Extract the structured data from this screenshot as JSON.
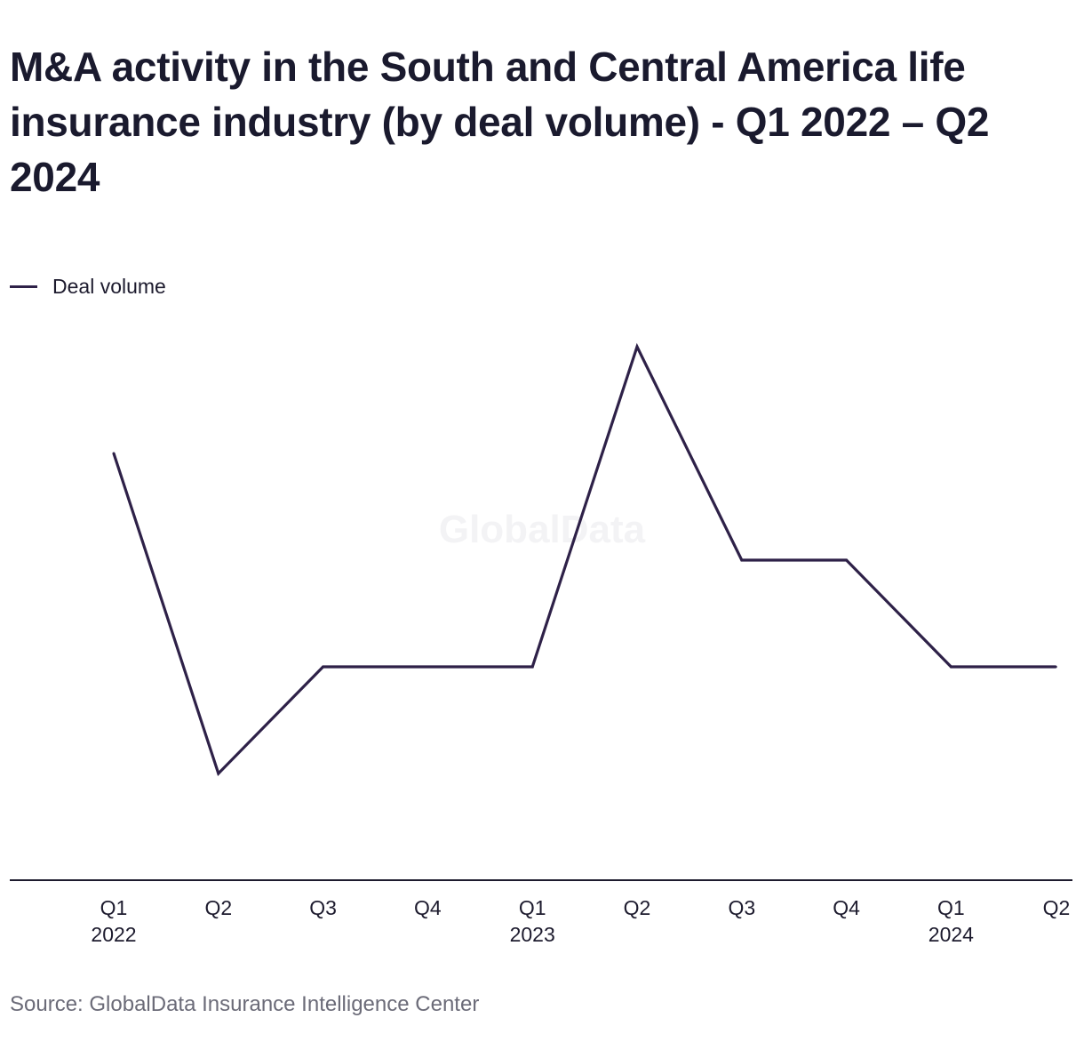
{
  "source_text": "Source: GlobalData Insurance Intelligence Center",
  "watermark": "GlobalData",
  "chart_data": {
    "type": "line",
    "title": "M&A activity in the South and Central America life insurance industry (by deal volume) - Q1 2022 – Q2 2024",
    "xlabel": "",
    "ylabel": "",
    "categories": [
      {
        "quarter": "Q1",
        "year": "2022"
      },
      {
        "quarter": "Q2",
        "year": ""
      },
      {
        "quarter": "Q3",
        "year": ""
      },
      {
        "quarter": "Q4",
        "year": ""
      },
      {
        "quarter": "Q1",
        "year": "2023"
      },
      {
        "quarter": "Q2",
        "year": ""
      },
      {
        "quarter": "Q3",
        "year": ""
      },
      {
        "quarter": "Q4",
        "year": ""
      },
      {
        "quarter": "Q1",
        "year": "2024"
      },
      {
        "quarter": "Q2",
        "year": ""
      }
    ],
    "series": [
      {
        "name": "Deal volume",
        "color": "#2e2148",
        "values": [
          4,
          1,
          2,
          2,
          2,
          5,
          3,
          3,
          2,
          2
        ]
      }
    ],
    "ylim": [
      0,
      6
    ],
    "grid": false,
    "legend": "top-left"
  }
}
